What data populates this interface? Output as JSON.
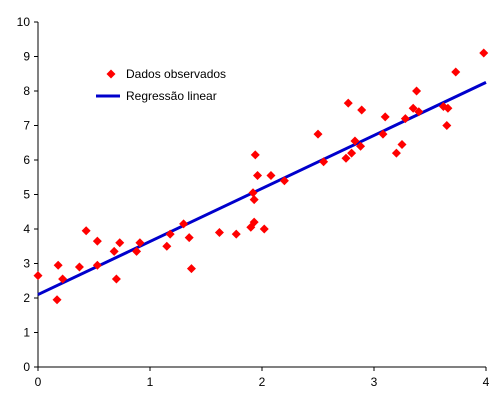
{
  "chart_data": {
    "type": "scatter",
    "title": "",
    "xlabel": "",
    "ylabel": "",
    "xlim": [
      0,
      4
    ],
    "ylim": [
      0,
      10
    ],
    "x_ticks": [
      "0",
      "1",
      "2",
      "3",
      "4"
    ],
    "y_ticks": [
      "0",
      "1",
      "2",
      "3",
      "4",
      "5",
      "6",
      "7",
      "8",
      "9",
      "10"
    ],
    "grid": false,
    "legend_position": "upper-left",
    "series": [
      {
        "name": "Dados observados",
        "kind": "scatter",
        "marker": "diamond",
        "color": "#ff0000",
        "points": [
          [
            0.0,
            2.65
          ],
          [
            0.17,
            1.95
          ],
          [
            0.18,
            2.95
          ],
          [
            0.22,
            2.55
          ],
          [
            0.37,
            2.9
          ],
          [
            0.43,
            3.95
          ],
          [
            0.53,
            3.65
          ],
          [
            0.53,
            2.95
          ],
          [
            0.68,
            3.35
          ],
          [
            0.7,
            2.55
          ],
          [
            0.73,
            3.6
          ],
          [
            0.88,
            3.35
          ],
          [
            0.91,
            3.6
          ],
          [
            1.15,
            3.5
          ],
          [
            1.18,
            3.85
          ],
          [
            1.3,
            4.15
          ],
          [
            1.35,
            3.75
          ],
          [
            1.37,
            2.85
          ],
          [
            1.62,
            3.9
          ],
          [
            1.77,
            3.85
          ],
          [
            1.9,
            4.05
          ],
          [
            1.92,
            5.05
          ],
          [
            1.93,
            4.85
          ],
          [
            1.93,
            4.2
          ],
          [
            1.94,
            6.15
          ],
          [
            1.96,
            5.55
          ],
          [
            2.02,
            4.0
          ],
          [
            2.08,
            5.55
          ],
          [
            2.2,
            5.4
          ],
          [
            2.5,
            6.75
          ],
          [
            2.55,
            5.95
          ],
          [
            2.75,
            6.05
          ],
          [
            2.77,
            7.65
          ],
          [
            2.8,
            6.2
          ],
          [
            2.83,
            6.55
          ],
          [
            2.88,
            6.4
          ],
          [
            2.89,
            7.45
          ],
          [
            3.08,
            6.75
          ],
          [
            3.1,
            7.25
          ],
          [
            3.2,
            6.2
          ],
          [
            3.25,
            6.45
          ],
          [
            3.28,
            7.2
          ],
          [
            3.35,
            7.5
          ],
          [
            3.38,
            8.0
          ],
          [
            3.4,
            7.4
          ],
          [
            3.62,
            7.55
          ],
          [
            3.65,
            7.0
          ],
          [
            3.66,
            7.5
          ],
          [
            3.73,
            8.55
          ],
          [
            3.98,
            9.1
          ]
        ]
      },
      {
        "name": "Regressão linear",
        "kind": "line",
        "color": "#0000cc",
        "points": [
          [
            0,
            2.1
          ],
          [
            4,
            8.25
          ]
        ]
      }
    ]
  }
}
